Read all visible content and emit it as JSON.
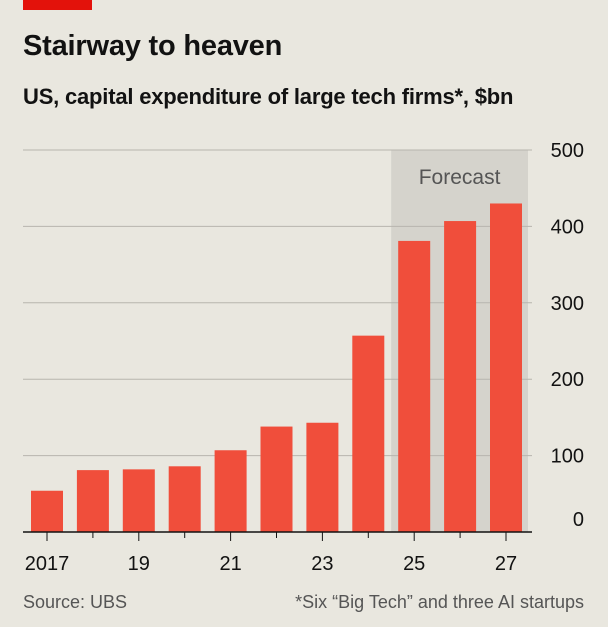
{
  "header": {
    "title": "Stairway to heaven",
    "subtitle": "US, capital expenditure of large tech firms*, $bn"
  },
  "footer": {
    "source": "Source: UBS",
    "footnote": "*Six “Big Tech” and three AI startups"
  },
  "colors": {
    "accent": "#e3120b",
    "bar": "#f04e3b",
    "forecast_shade": "#d5d3cc",
    "grid": "#b7b5ae",
    "background": "#e9e7df"
  },
  "chart_data": {
    "type": "bar",
    "categories": [
      "2017",
      "2018",
      "2019",
      "2020",
      "2021",
      "2022",
      "2023",
      "2024",
      "2025",
      "2026",
      "2027"
    ],
    "values": [
      54,
      81,
      82,
      86,
      107,
      138,
      143,
      257,
      381,
      407,
      430
    ],
    "x_tick_labels": [
      "2017",
      "",
      "19",
      "",
      "21",
      "",
      "23",
      "",
      "25",
      "",
      "27"
    ],
    "y_ticks": [
      0,
      100,
      200,
      300,
      400,
      500
    ],
    "ylim": [
      0,
      500
    ],
    "y_axis_side": "right",
    "grid": true,
    "forecast": {
      "label": "Forecast",
      "from_category": "2025",
      "to_category": "2027"
    }
  }
}
